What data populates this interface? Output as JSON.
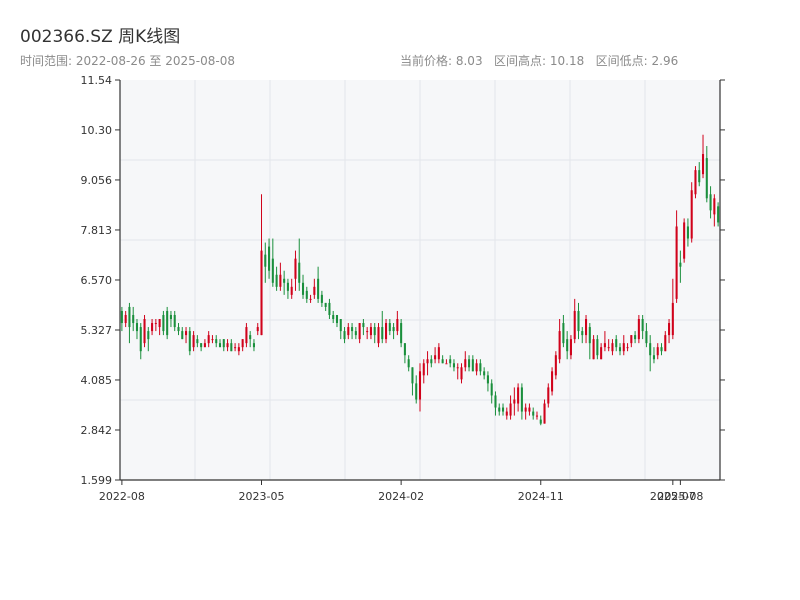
{
  "header": {
    "title": "002366.SZ 周K线图",
    "subtitle": "时间范围: 2022-08-26 至 2025-08-08",
    "stats": "当前价格: 8.03   区间高点: 10.18   区间低点: 2.96"
  },
  "colors": {
    "up": "#d0021b",
    "down": "#1a8f3c",
    "plot_bg": "#f6f7f9",
    "grid": "#e3e6ea",
    "axis": "#333333"
  },
  "chart_data": {
    "type": "candlestick",
    "title": "002366.SZ 周K线图",
    "xlabel": "",
    "ylabel": "",
    "ylim": [
      1.599,
      11.54
    ],
    "y_ticks": [
      "1.599",
      "2.842",
      "4.085",
      "5.327",
      "6.570",
      "7.813",
      "9.056",
      "10.30",
      "11.54"
    ],
    "x_ticks": [
      {
        "index": 0,
        "label": "2022-08"
      },
      {
        "index": 37,
        "label": "2023-05"
      },
      {
        "index": 74,
        "label": "2024-02"
      },
      {
        "index": 111,
        "label": "2024-11"
      },
      {
        "index": 146,
        "label": "2025-07"
      },
      {
        "index": 148,
        "label": "2025-08"
      }
    ],
    "grid": true,
    "candles": [
      [
        5.8,
        5.5,
        5.9,
        5.3
      ],
      [
        5.5,
        5.7,
        5.8,
        5.4
      ],
      [
        5.9,
        5.4,
        6.0,
        5.0
      ],
      [
        5.7,
        5.5,
        5.9,
        5.3
      ],
      [
        5.5,
        5.3,
        5.6,
        5.1
      ],
      [
        5.4,
        4.8,
        5.5,
        4.6
      ],
      [
        5.0,
        5.6,
        5.7,
        4.9
      ],
      [
        5.3,
        5.1,
        5.4,
        4.8
      ],
      [
        5.3,
        5.5,
        5.6,
        5.2
      ],
      [
        5.5,
        5.5,
        5.6,
        5.3
      ],
      [
        5.4,
        5.6,
        5.6,
        5.2
      ],
      [
        5.7,
        5.3,
        5.8,
        5.2
      ],
      [
        5.8,
        5.2,
        5.9,
        5.1
      ],
      [
        5.7,
        5.6,
        5.8,
        5.4
      ],
      [
        5.7,
        5.4,
        5.8,
        5.3
      ],
      [
        5.4,
        5.3,
        5.5,
        5.2
      ],
      [
        5.3,
        5.1,
        5.4,
        5.1
      ],
      [
        5.2,
        5.3,
        5.4,
        5.0
      ],
      [
        5.3,
        4.8,
        5.4,
        4.7
      ],
      [
        4.9,
        5.2,
        5.3,
        4.8
      ],
      [
        5.1,
        5.0,
        5.2,
        4.9
      ],
      [
        5.0,
        4.9,
        5.0,
        4.8
      ],
      [
        4.9,
        5.0,
        5.1,
        4.9
      ],
      [
        5.0,
        5.2,
        5.3,
        4.9
      ],
      [
        5.1,
        5.1,
        5.2,
        5.0
      ],
      [
        5.1,
        5.0,
        5.2,
        4.9
      ],
      [
        5.0,
        4.9,
        5.1,
        4.9
      ],
      [
        5.1,
        4.9,
        5.1,
        4.8
      ],
      [
        4.9,
        5.0,
        5.1,
        4.8
      ],
      [
        5.0,
        4.8,
        5.1,
        4.8
      ],
      [
        4.9,
        4.9,
        5.0,
        4.8
      ],
      [
        4.8,
        4.9,
        5.0,
        4.7
      ],
      [
        4.9,
        5.1,
        5.1,
        4.8
      ],
      [
        5.0,
        5.4,
        5.5,
        4.9
      ],
      [
        5.2,
        5.1,
        5.3,
        4.9
      ],
      [
        5.0,
        4.9,
        5.1,
        4.8
      ],
      [
        5.3,
        5.4,
        5.5,
        5.2
      ],
      [
        5.2,
        7.3,
        8.7,
        5.2
      ],
      [
        7.2,
        6.9,
        7.5,
        6.5
      ],
      [
        7.4,
        6.8,
        7.6,
        6.6
      ],
      [
        7.1,
        6.5,
        7.6,
        6.4
      ],
      [
        6.7,
        6.4,
        6.9,
        6.3
      ],
      [
        6.4,
        6.7,
        7.0,
        6.3
      ],
      [
        6.6,
        6.5,
        6.8,
        6.2
      ],
      [
        6.5,
        6.3,
        6.6,
        6.1
      ],
      [
        6.2,
        6.4,
        6.6,
        6.1
      ],
      [
        6.6,
        7.1,
        7.3,
        6.3
      ],
      [
        7.0,
        6.5,
        7.6,
        6.3
      ],
      [
        6.5,
        6.2,
        6.7,
        6.1
      ],
      [
        6.3,
        6.1,
        6.4,
        6.0
      ],
      [
        6.1,
        6.1,
        6.2,
        6.0
      ],
      [
        6.2,
        6.4,
        6.6,
        6.1
      ],
      [
        6.6,
        6.1,
        6.9,
        6.0
      ],
      [
        6.2,
        6.0,
        6.3,
        5.9
      ],
      [
        6.0,
        5.9,
        6.0,
        5.8
      ],
      [
        6.0,
        5.7,
        6.1,
        5.6
      ],
      [
        5.7,
        5.6,
        5.8,
        5.5
      ],
      [
        5.7,
        5.5,
        5.7,
        5.4
      ],
      [
        5.6,
        5.3,
        5.6,
        5.1
      ],
      [
        5.3,
        5.1,
        5.4,
        5.0
      ],
      [
        5.2,
        5.4,
        5.5,
        5.1
      ],
      [
        5.4,
        5.3,
        5.5,
        5.1
      ],
      [
        5.3,
        5.2,
        5.4,
        5.1
      ],
      [
        5.1,
        5.5,
        5.5,
        5.0
      ],
      [
        5.5,
        5.4,
        5.6,
        5.2
      ],
      [
        5.3,
        5.3,
        5.4,
        5.1
      ],
      [
        5.2,
        5.4,
        5.5,
        5.1
      ],
      [
        5.4,
        5.2,
        5.5,
        5.0
      ],
      [
        5.0,
        5.4,
        5.5,
        4.9
      ],
      [
        5.4,
        5.1,
        5.8,
        5.0
      ],
      [
        5.1,
        5.5,
        5.6,
        5.0
      ],
      [
        5.5,
        5.3,
        5.6,
        5.2
      ],
      [
        5.4,
        5.3,
        5.5,
        5.1
      ],
      [
        5.3,
        5.6,
        5.8,
        5.2
      ],
      [
        5.5,
        5.0,
        5.6,
        4.9
      ],
      [
        5.0,
        4.7,
        5.0,
        4.5
      ],
      [
        4.6,
        4.4,
        4.7,
        4.3
      ],
      [
        4.4,
        4.0,
        4.4,
        3.7
      ],
      [
        4.0,
        3.6,
        4.2,
        3.5
      ],
      [
        3.6,
        4.3,
        4.5,
        3.3
      ],
      [
        4.2,
        4.5,
        4.6,
        4.0
      ],
      [
        4.5,
        4.6,
        4.8,
        4.2
      ],
      [
        4.6,
        4.5,
        4.7,
        4.4
      ],
      [
        4.6,
        4.7,
        4.9,
        4.5
      ],
      [
        4.6,
        4.9,
        5.0,
        4.5
      ],
      [
        4.6,
        4.5,
        4.7,
        4.5
      ],
      [
        4.5,
        4.5,
        4.6,
        4.5
      ],
      [
        4.6,
        4.5,
        4.7,
        4.4
      ],
      [
        4.5,
        4.4,
        4.6,
        4.3
      ],
      [
        4.4,
        4.4,
        4.5,
        4.1
      ],
      [
        4.1,
        4.4,
        4.5,
        4.0
      ],
      [
        4.4,
        4.6,
        4.8,
        4.3
      ],
      [
        4.6,
        4.4,
        4.7,
        4.3
      ],
      [
        4.6,
        4.3,
        4.7,
        4.3
      ],
      [
        4.3,
        4.5,
        4.6,
        4.2
      ],
      [
        4.5,
        4.3,
        4.6,
        4.2
      ],
      [
        4.3,
        4.2,
        4.4,
        4.1
      ],
      [
        4.2,
        4.0,
        4.3,
        3.8
      ],
      [
        4.0,
        3.7,
        4.1,
        3.5
      ],
      [
        3.7,
        3.4,
        3.8,
        3.2
      ],
      [
        3.4,
        3.3,
        3.5,
        3.2
      ],
      [
        3.4,
        3.3,
        3.5,
        3.2
      ],
      [
        3.2,
        3.3,
        3.4,
        3.1
      ],
      [
        3.2,
        3.5,
        3.7,
        3.1
      ],
      [
        3.5,
        3.6,
        3.9,
        3.2
      ],
      [
        3.5,
        3.9,
        4.0,
        3.3
      ],
      [
        3.9,
        3.3,
        4.0,
        3.1
      ],
      [
        3.3,
        3.4,
        3.5,
        3.1
      ],
      [
        3.3,
        3.4,
        3.5,
        3.2
      ],
      [
        3.3,
        3.2,
        3.4,
        3.1
      ],
      [
        3.2,
        3.2,
        3.3,
        3.1
      ],
      [
        3.1,
        3.0,
        3.2,
        2.96
      ],
      [
        3.0,
        3.5,
        3.6,
        3.0
      ],
      [
        3.5,
        3.9,
        4.0,
        3.4
      ],
      [
        3.8,
        4.3,
        4.4,
        3.7
      ],
      [
        4.2,
        4.7,
        4.8,
        4.1
      ],
      [
        4.6,
        5.3,
        5.6,
        4.5
      ],
      [
        5.5,
        5.0,
        5.7,
        4.9
      ],
      [
        5.1,
        4.8,
        5.3,
        4.6
      ],
      [
        4.7,
        5.1,
        5.2,
        4.6
      ],
      [
        5.1,
        5.8,
        6.1,
        5.0
      ],
      [
        5.8,
        5.3,
        6.0,
        5.1
      ],
      [
        5.3,
        5.2,
        5.4,
        5.0
      ],
      [
        5.2,
        5.6,
        5.7,
        5.0
      ],
      [
        5.4,
        5.0,
        5.5,
        4.6
      ],
      [
        4.6,
        5.1,
        5.2,
        4.6
      ],
      [
        5.1,
        4.7,
        5.2,
        4.6
      ],
      [
        4.6,
        4.9,
        5.0,
        4.6
      ],
      [
        4.9,
        5.0,
        5.3,
        4.8
      ],
      [
        4.9,
        4.9,
        5.1,
        4.8
      ],
      [
        4.8,
        5.0,
        5.1,
        4.7
      ],
      [
        5.1,
        4.9,
        5.2,
        4.8
      ],
      [
        4.9,
        4.8,
        5.0,
        4.7
      ],
      [
        4.8,
        5.0,
        5.2,
        4.7
      ],
      [
        4.9,
        4.9,
        5.0,
        4.8
      ],
      [
        5.0,
        5.2,
        5.2,
        4.9
      ],
      [
        5.2,
        5.1,
        5.3,
        5.0
      ],
      [
        5.1,
        5.6,
        5.7,
        5.0
      ],
      [
        5.6,
        5.3,
        5.7,
        5.1
      ],
      [
        5.3,
        5.0,
        5.5,
        4.9
      ],
      [
        5.0,
        4.7,
        5.2,
        4.3
      ],
      [
        4.7,
        4.6,
        4.9,
        4.5
      ],
      [
        4.7,
        4.9,
        5.0,
        4.6
      ],
      [
        4.9,
        4.8,
        5.0,
        4.7
      ],
      [
        4.8,
        5.2,
        5.3,
        4.8
      ],
      [
        5.2,
        5.5,
        5.6,
        5.0
      ],
      [
        5.2,
        6.0,
        6.6,
        5.1
      ]
    ],
    "candles_tail": [
      [
        6.1,
        7.9,
        8.3,
        6.0
      ],
      [
        7.0,
        6.9,
        7.3,
        6.5
      ],
      [
        7.1,
        8.0,
        8.1,
        7.0
      ],
      [
        7.9,
        7.6,
        8.1,
        7.4
      ],
      [
        7.6,
        8.8,
        9.0,
        7.5
      ],
      [
        8.7,
        9.3,
        9.4,
        8.6
      ],
      [
        9.3,
        9.0,
        9.5,
        8.9
      ],
      [
        9.2,
        9.7,
        10.18,
        9.1
      ],
      [
        9.6,
        8.6,
        9.9,
        8.5
      ],
      [
        8.7,
        8.3,
        8.9,
        8.1
      ],
      [
        8.2,
        8.6,
        8.7,
        7.9
      ],
      [
        8.4,
        8.0,
        8.5,
        7.9
      ]
    ]
  }
}
